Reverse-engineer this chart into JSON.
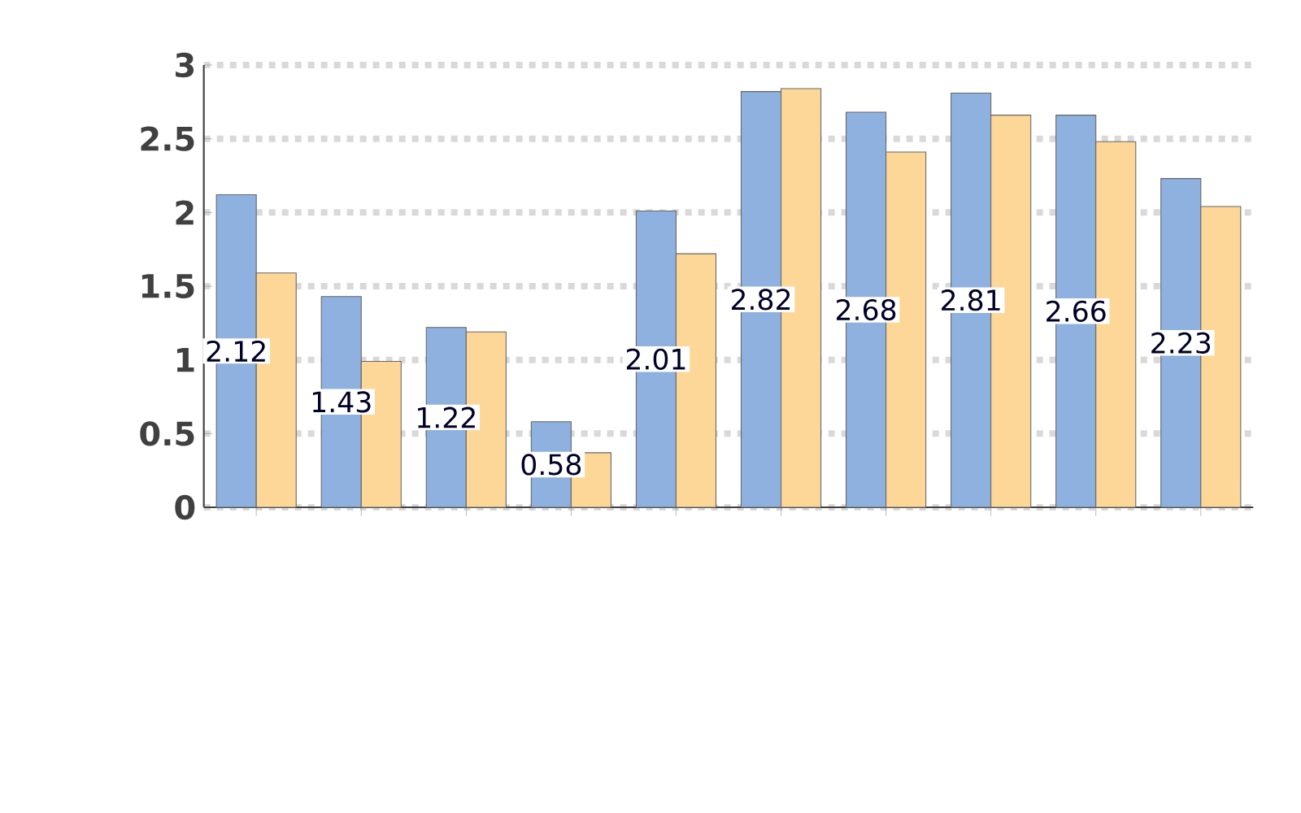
{
  "chart_data": {
    "type": "bar",
    "categories": [
      null,
      null,
      null,
      null,
      null,
      null,
      null,
      null,
      null,
      null
    ],
    "series": [
      {
        "color": "#8eb1df",
        "values": [
          2.12,
          1.43,
          1.22,
          0.58,
          2.01,
          2.82,
          2.68,
          2.81,
          2.66,
          2.23
        ],
        "value_labels": [
          "2.12",
          "1.43",
          "1.22",
          "0.58",
          "2.01",
          "2.82",
          "2.68",
          "2.81",
          "2.66",
          "2.23"
        ]
      },
      {
        "color": "#fdd798",
        "values": [
          1.59,
          0.99,
          1.19,
          0.37,
          1.72,
          2.84,
          2.41,
          2.66,
          2.48,
          2.04
        ]
      }
    ],
    "ylim": [
      0,
      3
    ],
    "yticks": [
      0,
      0.5,
      1,
      1.5,
      2,
      2.5,
      3
    ],
    "grid": "y",
    "tick_labels": "y"
  }
}
